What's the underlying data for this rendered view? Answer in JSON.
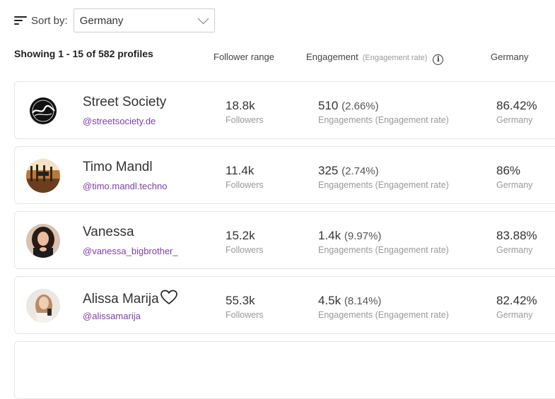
{
  "sort": {
    "label": "Sort by:",
    "selected": "Germany"
  },
  "summary": "Showing 1 - 15 of 582 profiles",
  "columns": {
    "follower_range": "Follower range",
    "engagement": "Engagement",
    "engagement_sub": "(Engagement rate)",
    "country": "Germany"
  },
  "profiles": [
    {
      "name": "Street Society",
      "handle": "@streetsociety.de",
      "followers": "18.8k",
      "followers_label": "Followers",
      "engagements": "510",
      "rate": "(2.66%)",
      "engagement_label": "Engagements (Engagement rate)",
      "country_pct": "86.42%",
      "country_label": "Germany"
    },
    {
      "name": "Timo Mandl",
      "handle": "@timo.mandl.techno",
      "followers": "11.4k",
      "followers_label": "Followers",
      "engagements": "325",
      "rate": "(2.74%)",
      "engagement_label": "Engagements (Engagement rate)",
      "country_pct": "86%",
      "country_label": "Germany"
    },
    {
      "name": "Vanessa",
      "handle": "@vanessa_bigbrother_",
      "followers": "15.2k",
      "followers_label": "Followers",
      "engagements": "1.4k",
      "rate": "(9.97%)",
      "engagement_label": "Engagements (Engagement rate)",
      "country_pct": "83.88%",
      "country_label": "Germany"
    },
    {
      "name": "Alissa Marija",
      "handle": "@alissamarija",
      "followers": "55.3k",
      "followers_label": "Followers",
      "engagements": "4.5k",
      "rate": "(8.14%)",
      "engagement_label": "Engagements (Engagement rate)",
      "country_pct": "82.42%",
      "country_label": "Germany"
    }
  ],
  "icons": {
    "sort": "sort-lines-icon",
    "chevron": "chevron-down-icon",
    "info": "info-icon",
    "favorite": "heart-outline-icon"
  }
}
